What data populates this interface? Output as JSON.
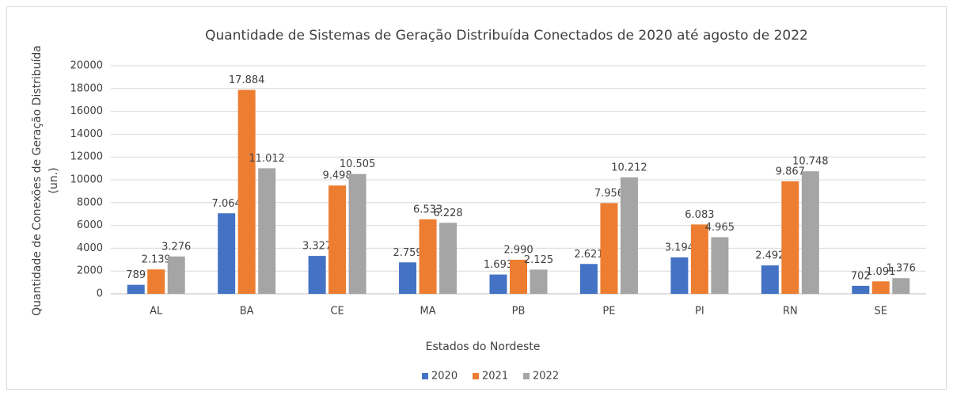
{
  "chart_data": {
    "type": "bar",
    "title": "Quantidade de Sistemas de Geração Distribuída Conectados de 2020 até agosto de 2022",
    "xlabel": "Estados do Nordeste",
    "ylabel": [
      "Quantidade de Conexões de Geração Distribuída",
      "(un.)"
    ],
    "categories": [
      "AL",
      "BA",
      "CE",
      "MA",
      "PB",
      "PE",
      "PI",
      "RN",
      "SE"
    ],
    "series": [
      {
        "name": "2020",
        "color": "#4472c4",
        "values": [
          789,
          7064,
          3327,
          2759,
          1693,
          2621,
          3194,
          2492,
          702
        ],
        "value_labels": [
          "789",
          "7.064",
          "3.327",
          "2.759",
          "1.693",
          "2.621",
          "3.194",
          "2.492",
          "702"
        ]
      },
      {
        "name": "2021",
        "color": "#ed7d31",
        "values": [
          2139,
          17884,
          9498,
          6533,
          2990,
          7956,
          6083,
          9867,
          1091
        ],
        "value_labels": [
          "2.139",
          "17.884",
          "9.498",
          "6.533",
          "2.990",
          "7.956",
          "6.083",
          "9.867",
          "1.091"
        ]
      },
      {
        "name": "2022",
        "color": "#a5a5a5",
        "values": [
          3276,
          11012,
          10505,
          6228,
          2125,
          10212,
          4965,
          10748,
          1376
        ],
        "value_labels": [
          "3.276",
          "11.012",
          "10.505",
          "6.228",
          "2.125",
          "10.212",
          "4.965",
          "10.748",
          "1.376"
        ]
      }
    ],
    "ylim": [
      0,
      20000
    ],
    "yticks": [
      0,
      2000,
      4000,
      6000,
      8000,
      10000,
      12000,
      14000,
      16000,
      18000,
      20000
    ],
    "grid": true,
    "legend": "bottom"
  }
}
